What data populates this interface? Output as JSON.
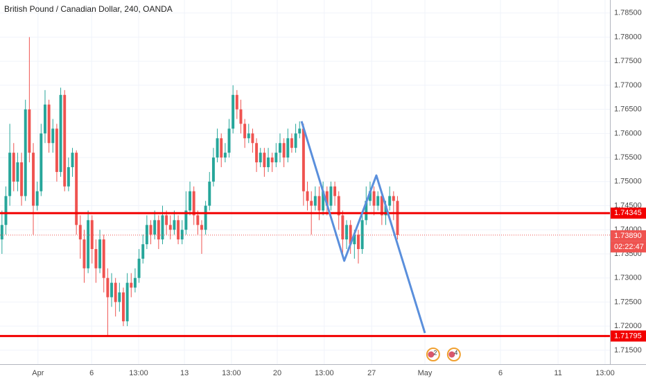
{
  "chart_data": {
    "type": "candlestick",
    "title": "British Pound / Canadian Dollar, 240, OANDA",
    "up_color": "#26a69a",
    "down_color": "#ef5350",
    "grid": true,
    "x": [
      0,
      1,
      2,
      3,
      4,
      5,
      6,
      7,
      8,
      9,
      10,
      11,
      12,
      13,
      14,
      15,
      16,
      17,
      18,
      19,
      20,
      21,
      22,
      23,
      24,
      25,
      26,
      27,
      28,
      29,
      30,
      31,
      32,
      33,
      34,
      35,
      36,
      37,
      38,
      39,
      40,
      41,
      42,
      43,
      44,
      45,
      46,
      47,
      48,
      49,
      50,
      51,
      52,
      53,
      54,
      55,
      56,
      57,
      58,
      59,
      60,
      61,
      62,
      63,
      64,
      65,
      66,
      67,
      68,
      69,
      70,
      71,
      72,
      73,
      74,
      75,
      76,
      77,
      78,
      79,
      80,
      81,
      82,
      83,
      84,
      85,
      86,
      87,
      88,
      89,
      90,
      91,
      92,
      93,
      94,
      95,
      96,
      97,
      98,
      99,
      100,
      101
    ],
    "open": [
      1.738,
      1.741,
      1.747,
      1.756,
      1.75,
      1.754,
      1.747,
      1.765,
      1.756,
      1.745,
      1.748,
      1.76,
      1.766,
      1.758,
      1.761,
      1.752,
      1.768,
      1.749,
      1.753,
      1.756,
      1.741,
      1.738,
      1.732,
      1.742,
      1.736,
      1.732,
      1.738,
      1.73,
      1.726,
      1.729,
      1.725,
      1.727,
      1.721,
      1.729,
      1.728,
      1.73,
      1.734,
      1.737,
      1.741,
      1.739,
      1.742,
      1.738,
      1.743,
      1.741,
      1.74,
      1.742,
      1.738,
      1.74,
      1.744,
      1.748,
      1.743,
      1.741,
      1.74,
      1.745,
      1.75,
      1.755,
      1.759,
      1.755,
      1.756,
      1.761,
      1.768,
      1.765,
      1.762,
      1.759,
      1.76,
      1.758,
      1.754,
      1.756,
      1.753,
      1.755,
      1.754,
      1.756,
      1.758,
      1.755,
      1.759,
      1.757,
      1.76,
      1.761,
      1.748,
      1.746,
      1.745,
      1.747,
      1.744,
      1.748,
      1.745,
      1.749,
      1.747,
      1.743,
      1.738,
      1.741,
      1.737,
      1.739,
      1.736,
      1.742,
      1.746,
      1.748,
      1.745,
      1.747,
      1.743,
      1.745,
      1.747,
      1.746
    ],
    "high": [
      1.744,
      1.749,
      1.762,
      1.758,
      1.756,
      1.756,
      1.767,
      1.78,
      1.758,
      1.75,
      1.762,
      1.769,
      1.767,
      1.763,
      1.762,
      1.7695,
      1.769,
      1.755,
      1.757,
      1.7565,
      1.743,
      1.74,
      1.744,
      1.743,
      1.738,
      1.74,
      1.739,
      1.732,
      1.731,
      1.73,
      1.729,
      1.728,
      1.731,
      1.731,
      1.732,
      1.736,
      1.739,
      1.743,
      1.742,
      1.744,
      1.743,
      1.745,
      1.744,
      1.743,
      1.744,
      1.743,
      1.742,
      1.748,
      1.75,
      1.749,
      1.744,
      1.742,
      1.746,
      1.752,
      1.757,
      1.761,
      1.76,
      1.758,
      1.763,
      1.77,
      1.769,
      1.767,
      1.763,
      1.762,
      1.761,
      1.759,
      1.757,
      1.757,
      1.757,
      1.756,
      1.758,
      1.76,
      1.759,
      1.761,
      1.76,
      1.762,
      1.7625,
      1.762,
      1.75,
      1.748,
      1.749,
      1.749,
      1.75,
      1.749,
      1.75,
      1.75,
      1.748,
      1.744,
      1.742,
      1.742,
      1.74,
      1.74,
      1.743,
      1.749,
      1.75,
      1.749,
      1.748,
      1.748,
      1.746,
      1.749,
      1.748,
      1.747
    ],
    "low": [
      1.735,
      1.739,
      1.745,
      1.748,
      1.748,
      1.745,
      1.746,
      1.754,
      1.739,
      1.744,
      1.747,
      1.758,
      1.756,
      1.756,
      1.75,
      1.751,
      1.748,
      1.748,
      1.751,
      1.739,
      1.734,
      1.729,
      1.731,
      1.733,
      1.729,
      1.731,
      1.727,
      1.718,
      1.724,
      1.722,
      1.723,
      1.72,
      1.72,
      1.726,
      1.727,
      1.729,
      1.733,
      1.736,
      1.737,
      1.738,
      1.736,
      1.737,
      1.739,
      1.738,
      1.739,
      1.737,
      1.737,
      1.739,
      1.743,
      1.741,
      1.739,
      1.735,
      1.739,
      1.744,
      1.749,
      1.754,
      1.753,
      1.754,
      1.755,
      1.76,
      1.763,
      1.76,
      1.757,
      1.758,
      1.756,
      1.752,
      1.753,
      1.751,
      1.752,
      1.752,
      1.753,
      1.754,
      1.753,
      1.754,
      1.756,
      1.756,
      1.759,
      1.745,
      1.744,
      1.739,
      1.744,
      1.742,
      1.743,
      1.743,
      1.744,
      1.745,
      1.74,
      1.735,
      1.736,
      1.735,
      1.734,
      1.733,
      1.735,
      1.741,
      1.745,
      1.743,
      1.744,
      1.741,
      1.741,
      1.744,
      1.742,
      1.738
    ],
    "close": [
      1.741,
      1.747,
      1.756,
      1.75,
      1.754,
      1.747,
      1.765,
      1.756,
      1.745,
      1.748,
      1.76,
      1.766,
      1.758,
      1.761,
      1.752,
      1.768,
      1.749,
      1.753,
      1.756,
      1.741,
      1.738,
      1.732,
      1.742,
      1.736,
      1.732,
      1.738,
      1.73,
      1.726,
      1.729,
      1.725,
      1.727,
      1.721,
      1.729,
      1.728,
      1.73,
      1.734,
      1.737,
      1.741,
      1.739,
      1.742,
      1.738,
      1.743,
      1.741,
      1.74,
      1.742,
      1.738,
      1.74,
      1.744,
      1.748,
      1.743,
      1.741,
      1.74,
      1.745,
      1.75,
      1.755,
      1.759,
      1.755,
      1.756,
      1.761,
      1.768,
      1.765,
      1.762,
      1.759,
      1.76,
      1.758,
      1.754,
      1.756,
      1.753,
      1.755,
      1.754,
      1.756,
      1.758,
      1.755,
      1.759,
      1.757,
      1.76,
      1.761,
      1.748,
      1.746,
      1.745,
      1.747,
      1.744,
      1.748,
      1.745,
      1.749,
      1.747,
      1.743,
      1.738,
      1.741,
      1.737,
      1.739,
      1.736,
      1.742,
      1.746,
      1.748,
      1.745,
      1.747,
      1.743,
      1.745,
      1.747,
      1.746,
      1.7389
    ],
    "xlim": [
      -0.5,
      155.25
    ],
    "xticks": [
      {
        "value": 9.2,
        "label": "Apr"
      },
      {
        "value": 22.9,
        "label": "6"
      },
      {
        "value": 34.9,
        "label": "13:00"
      },
      {
        "value": 46.6,
        "label": "13"
      },
      {
        "value": 58.6,
        "label": "13:00"
      },
      {
        "value": 70.3,
        "label": "20"
      },
      {
        "value": 82.3,
        "label": "13:00"
      },
      {
        "value": 94.4,
        "label": "27"
      },
      {
        "value": 108.0,
        "label": "May"
      },
      {
        "value": 127.3,
        "label": "6"
      },
      {
        "value": 142.0,
        "label": "11"
      },
      {
        "value": 154.0,
        "label": "13:00"
      }
    ],
    "ylim": [
      1.7121,
      1.7877
    ],
    "yticks": [
      {
        "value": 1.715,
        "label": "1.71500"
      },
      {
        "value": 1.72,
        "label": "1.72000"
      },
      {
        "value": 1.725,
        "label": "1.72500"
      },
      {
        "value": 1.73,
        "label": "1.73000"
      },
      {
        "value": 1.735,
        "label": "1.73500"
      },
      {
        "value": 1.74,
        "label": "1.74000"
      },
      {
        "value": 1.745,
        "label": "1.74500"
      },
      {
        "value": 1.75,
        "label": "1.75000"
      },
      {
        "value": 1.755,
        "label": "1.75500"
      },
      {
        "value": 1.76,
        "label": "1.76000"
      },
      {
        "value": 1.765,
        "label": "1.76500"
      },
      {
        "value": 1.77,
        "label": "1.77000"
      },
      {
        "value": 1.775,
        "label": "1.77500"
      },
      {
        "value": 1.78,
        "label": "1.78000"
      },
      {
        "value": 1.785,
        "label": "1.78500"
      }
    ],
    "levels": [
      {
        "value": 1.74345,
        "label": "1.74345",
        "color": "#f20000"
      },
      {
        "value": 1.71795,
        "label": "1.71795",
        "color": "#f20000"
      }
    ],
    "current_price": {
      "value": 1.7389,
      "label": "1.73890",
      "countdown": "02:22:47",
      "color": "#ef5350"
    },
    "pattern": {
      "color": "#5a8fdc",
      "x": [
        76.5,
        87.4,
        95.6,
        108.0
      ],
      "y": [
        1.76252,
        1.73356,
        1.75128,
        1.71857
      ]
    },
    "events": [
      {
        "x": 110.1,
        "label": "2"
      },
      {
        "x": 115.4,
        "label": "4"
      }
    ]
  }
}
